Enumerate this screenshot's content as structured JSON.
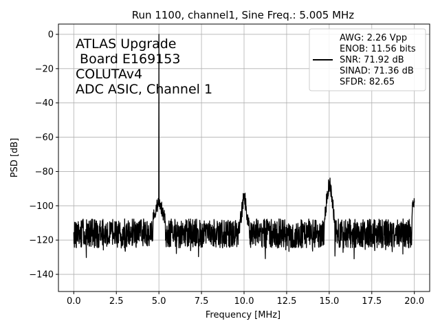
{
  "chart_data": {
    "type": "line",
    "title": "Run 1100, channel1, Sine Freq.: 5.005 MHz",
    "xlabel": "Frequency [MHz]",
    "ylabel": "PSD [dB]",
    "xlim": [
      -0.9,
      20.9
    ],
    "ylim": [
      -150,
      6
    ],
    "xticks": [
      0.0,
      2.5,
      5.0,
      7.5,
      10.0,
      12.5,
      15.0,
      17.5,
      20.0
    ],
    "xtick_labels": [
      "0.0",
      "2.5",
      "5.0",
      "7.5",
      "10.0",
      "12.5",
      "15.0",
      "17.5",
      "20.0"
    ],
    "yticks": [
      0,
      -20,
      -40,
      -60,
      -80,
      -100,
      -120,
      -140
    ],
    "ytick_labels": [
      "0",
      "−20",
      "−40",
      "−60",
      "−80",
      "−100",
      "−120",
      "−140"
    ],
    "grid": true,
    "legend_position": "top-right",
    "annotation_lines": [
      "ATLAS Upgrade",
      " Board E169153",
      "COLUTAv4",
      "ADC ASIC, Channel 1"
    ],
    "legend_lines": [
      "AWG: 2.26 Vpp",
      "ENOB: 11.56 bits",
      "SNR: 71.92 dB",
      "SINAD: 71.36 dB",
      "SFDR: 82.65"
    ],
    "line_color": "#000000",
    "noise_floor_db": -116,
    "features": [
      {
        "label": "fundamental",
        "x": 5.005,
        "y": 0
      },
      {
        "label": "spur",
        "x": 10.01,
        "y": -93
      },
      {
        "label": "harmonic",
        "x": 15.015,
        "y": -86
      },
      {
        "label": "edge",
        "x": 20.0,
        "y": -96
      }
    ]
  }
}
